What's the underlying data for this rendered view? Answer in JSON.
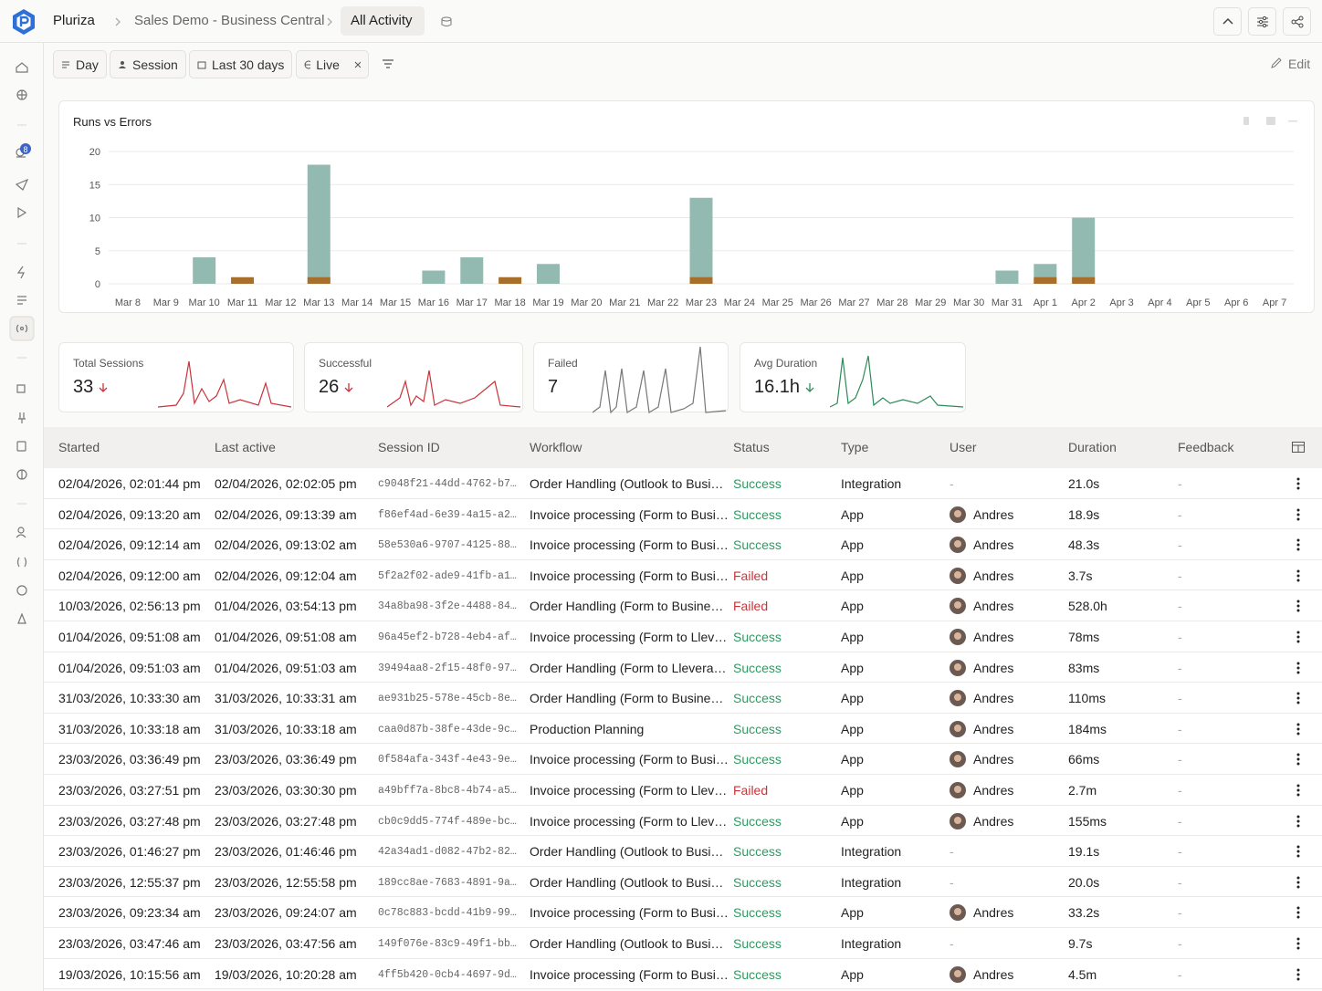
{
  "header": {
    "brand": "Pluriza",
    "breadcrumbs": [
      "Sales Demo - Business Central",
      "All Activity"
    ]
  },
  "sidebar": {
    "badge": 8
  },
  "toolbar": {
    "filters": [
      "Day",
      "Session",
      "Last 30 days",
      "Live"
    ],
    "edit": "Edit"
  },
  "chart_data": {
    "type": "bar",
    "title": "Runs vs Errors",
    "categories": [
      "Mar 8",
      "Mar 9",
      "Mar 10",
      "Mar 11",
      "Mar 12",
      "Mar 13",
      "Mar 14",
      "Mar 15",
      "Mar 16",
      "Mar 17",
      "Mar 18",
      "Mar 19",
      "Mar 20",
      "Mar 21",
      "Mar 22",
      "Mar 23",
      "Mar 24",
      "Mar 25",
      "Mar 26",
      "Mar 27",
      "Mar 28",
      "Mar 29",
      "Mar 30",
      "Mar 31",
      "Apr 1",
      "Apr 2",
      "Apr 3",
      "Apr 4",
      "Apr 5",
      "Apr 6",
      "Apr 7"
    ],
    "series": [
      {
        "color": "#93bab0",
        "values": [
          0,
          0,
          4,
          0,
          0,
          18,
          0,
          0,
          2,
          4,
          0,
          3,
          0,
          0,
          0,
          13,
          0,
          0,
          0,
          0,
          0,
          0,
          0,
          2,
          3,
          10,
          0,
          0,
          0,
          0,
          0
        ]
      },
      {
        "color": "#a86f2c",
        "values": [
          0,
          0,
          0,
          1,
          0,
          1,
          0,
          0,
          0,
          0,
          1,
          0,
          0,
          0,
          0,
          1,
          0,
          0,
          0,
          0,
          0,
          0,
          0,
          0,
          1,
          1,
          0,
          0,
          0,
          0,
          0
        ]
      }
    ],
    "ylim": [
      0,
      20
    ],
    "yticks": [
      0,
      5,
      10,
      15,
      20
    ],
    "grid": true
  },
  "kpis": [
    {
      "label": "Total Sessions",
      "value": 33
    },
    {
      "label": "Successful",
      "value": 26
    },
    {
      "label": "Failed",
      "value": 7
    },
    {
      "label": "Avg Duration",
      "value": "16.1h"
    }
  ],
  "table": {
    "columns": [
      "Started",
      "Last active",
      "Session ID",
      "Workflow",
      "Status",
      "Type",
      "User",
      "Duration",
      "Feedback"
    ],
    "status_colors": {
      "Success": "#2f9a62",
      "Failed": "#c8343a"
    },
    "rows": [
      [
        "02/04/2026, 02:01:44 pm",
        "02/04/2026, 02:02:05 pm",
        "c9048f21-44dd-4762-b7…",
        "Order Handling (Outlook to Busi…",
        "Success",
        "Integration",
        "-",
        "21.0s",
        "-"
      ],
      [
        "02/04/2026, 09:13:20 am",
        "02/04/2026, 09:13:39 am",
        "f86ef4ad-6e39-4a15-a2…",
        "Invoice processing (Form to Busi…",
        "Success",
        "App",
        "Andres",
        "18.9s",
        "-"
      ],
      [
        "02/04/2026, 09:12:14 am",
        "02/04/2026, 09:13:02 am",
        "58e530a6-9707-4125-88…",
        "Invoice processing (Form to Busi…",
        "Success",
        "App",
        "Andres",
        "48.3s",
        "-"
      ],
      [
        "02/04/2026, 09:12:00 am",
        "02/04/2026, 09:12:04 am",
        "5f2a2f02-ade9-41fb-a1…",
        "Invoice processing (Form to Busi…",
        "Failed",
        "App",
        "Andres",
        "3.7s",
        "-"
      ],
      [
        "10/03/2026, 02:56:13 pm",
        "01/04/2026, 03:54:13 pm",
        "34a8ba98-3f2e-4488-84…",
        "Order Handling (Form to Busine…",
        "Failed",
        "App",
        "Andres",
        "528.0h",
        "-"
      ],
      [
        "01/04/2026, 09:51:08 am",
        "01/04/2026, 09:51:08 am",
        "96a45ef2-b728-4eb4-af…",
        "Invoice processing (Form to Llev…",
        "Success",
        "App",
        "Andres",
        "78ms",
        "-"
      ],
      [
        "01/04/2026, 09:51:03 am",
        "01/04/2026, 09:51:03 am",
        "39494aa8-2f15-48f0-97…",
        "Order Handling (Form to Llevera…",
        "Success",
        "App",
        "Andres",
        "83ms",
        "-"
      ],
      [
        "31/03/2026, 10:33:30 am",
        "31/03/2026, 10:33:31 am",
        "ae931b25-578e-45cb-8e…",
        "Order Handling (Form to Busine…",
        "Success",
        "App",
        "Andres",
        "110ms",
        "-"
      ],
      [
        "31/03/2026, 10:33:18 am",
        "31/03/2026, 10:33:18 am",
        "caa0d87b-38fe-43de-9c…",
        "Production Planning",
        "Success",
        "App",
        "Andres",
        "184ms",
        "-"
      ],
      [
        "23/03/2026, 03:36:49 pm",
        "23/03/2026, 03:36:49 pm",
        "0f584afa-343f-4e43-9e…",
        "Invoice processing (Form to Busi…",
        "Success",
        "App",
        "Andres",
        "66ms",
        "-"
      ],
      [
        "23/03/2026, 03:27:51 pm",
        "23/03/2026, 03:30:30 pm",
        "a49bff7a-8bc8-4b74-a5…",
        "Invoice processing (Form to Llev…",
        "Failed",
        "App",
        "Andres",
        "2.7m",
        "-"
      ],
      [
        "23/03/2026, 03:27:48 pm",
        "23/03/2026, 03:27:48 pm",
        "cb0c9dd5-774f-489e-bc…",
        "Invoice processing (Form to Llev…",
        "Success",
        "App",
        "Andres",
        "155ms",
        "-"
      ],
      [
        "23/03/2026, 01:46:27 pm",
        "23/03/2026, 01:46:46 pm",
        "42a34ad1-d082-47b2-82…",
        "Order Handling (Outlook to Busi…",
        "Success",
        "Integration",
        "-",
        "19.1s",
        "-"
      ],
      [
        "23/03/2026, 12:55:37 pm",
        "23/03/2026, 12:55:58 pm",
        "189cc8ae-7683-4891-9a…",
        "Order Handling (Outlook to Busi…",
        "Success",
        "Integration",
        "-",
        "20.0s",
        "-"
      ],
      [
        "23/03/2026, 09:23:34 am",
        "23/03/2026, 09:24:07 am",
        "0c78c883-bcdd-41b9-99…",
        "Invoice processing (Form to Busi…",
        "Success",
        "App",
        "Andres",
        "33.2s",
        "-"
      ],
      [
        "23/03/2026, 03:47:46 am",
        "23/03/2026, 03:47:56 am",
        "149f076e-83c9-49f1-bb…",
        "Order Handling (Outlook to Busi…",
        "Success",
        "Integration",
        "-",
        "9.7s",
        "-"
      ],
      [
        "19/03/2026, 10:15:56 am",
        "19/03/2026, 10:20:28 am",
        "4ff5b420-0cb4-4697-9d…",
        "Invoice processing (Form to Busi…",
        "Success",
        "App",
        "Andres",
        "4.5m",
        "-"
      ]
    ]
  }
}
